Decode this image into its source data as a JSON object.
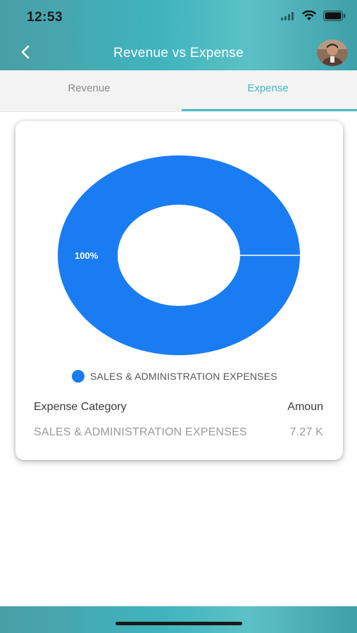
{
  "status_bar": {
    "time": "12:53"
  },
  "nav": {
    "title": "Revenue vs Expense"
  },
  "tabs": [
    {
      "label": "Revenue",
      "active": false
    },
    {
      "label": "Expense",
      "active": true
    }
  ],
  "chart_data": {
    "type": "pie",
    "categories": [
      "SALES & ADMINISTRATION EXPENSES"
    ],
    "values": [
      100
    ],
    "labels": [
      "100%"
    ],
    "colors": [
      "#1a7cf2"
    ],
    "legend": "bottom"
  },
  "legend": {
    "items": [
      {
        "label": "SALES & ADMINISTRATION EXPENSES",
        "color": "#1a7cf2"
      }
    ]
  },
  "table": {
    "headers": [
      "Expense Category",
      "Amoun"
    ],
    "rows": [
      {
        "category": "SALES & ADMINISTRATION EXPENSES",
        "amount": "7.27 K"
      }
    ]
  },
  "colors": {
    "accent": "#48bec9",
    "header_gradient": "#3fb4be",
    "chart_blue": "#1a7cf2"
  }
}
